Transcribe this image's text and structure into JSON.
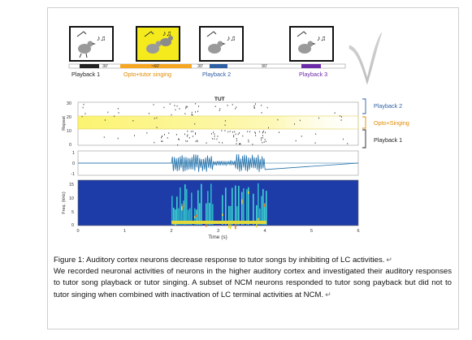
{
  "figure": {
    "timeline": {
      "segments": [
        {
          "label": "Playback 1",
          "color": "#222222",
          "label_color": "#222222"
        },
        {
          "label": "Opto+tutor singing",
          "color": "#f5a623",
          "label_color": "#e08a00"
        },
        {
          "label": "Playback 2",
          "color": "#2e5fa3",
          "label_color": "#2e5fa3"
        },
        {
          "label": "Playback 3",
          "color": "#6d2aa8",
          "label_color": "#6d2aa8"
        }
      ],
      "gaps": [
        "30'",
        "~60'",
        "30'",
        "90'"
      ]
    },
    "raster": {
      "title": "TUT",
      "ylabel": "Repeat",
      "yticks": [
        "0",
        "10",
        "20",
        "30"
      ],
      "brackets": [
        {
          "label": "Playback 2",
          "color": "#2e5fa3"
        },
        {
          "label": "Opto+Singing",
          "color": "#e08a00"
        },
        {
          "label": "Playback 1",
          "color": "#222222"
        }
      ]
    },
    "waveform": {
      "yticks": [
        "1",
        "0",
        "-1"
      ]
    },
    "spectrogram": {
      "ylabel": "Freq. (kHz)",
      "yticks": [
        "0",
        "5",
        "10",
        "15"
      ],
      "xticks": [
        "0",
        "1",
        "2",
        "3",
        "4",
        "5",
        "6"
      ],
      "xlabel": "Time (s)"
    }
  },
  "caption": {
    "title": "Figure 1: Auditory cortex neurons decrease response to tutor songs by inhibiting of LC activities.",
    "body": "We recorded neuronal activities of neurons in the higher auditory cortex and investigated their auditory responses to tutor song playback or tutor singing. A subset of NCM neurons responded to tutor song payback but did not to tutor singing when combined with inactivation of LC terminal activities at NCM.",
    "return_mark": "↵"
  },
  "colors": {
    "accent_yellow": "#f4ea1c",
    "raster_highlight": "#fbf48a",
    "waveform": "#1f6fa8"
  }
}
